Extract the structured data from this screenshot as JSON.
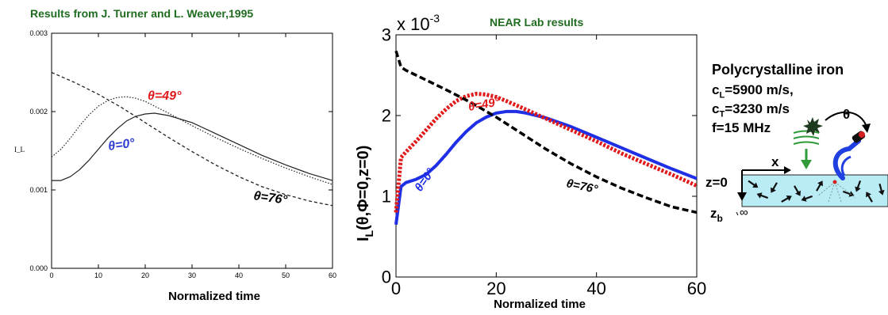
{
  "chart_data": [
    {
      "type": "line",
      "title": "Results from J. Turner and L. Weaver,1995",
      "xlabel": "Normalized time",
      "ylabel": "I_L",
      "xlim": [
        0,
        60
      ],
      "ylim": [
        0,
        0.003
      ],
      "xticks": [
        "0",
        "10",
        "20",
        "30",
        "40",
        "50",
        "60"
      ],
      "yticks": [
        "0.000",
        "0.001",
        "0.002",
        "0.003"
      ],
      "grid": false,
      "colors": {
        "title": "#1f6b1f",
        "series_line": "#222222"
      },
      "series": [
        {
          "name": "θ=0°",
          "style": "solid",
          "label_color": "#2f3bd1",
          "x": [
            0,
            2,
            4,
            6,
            8,
            10,
            12,
            14,
            16,
            18,
            20,
            22,
            25,
            30,
            35,
            40,
            45,
            50,
            55,
            60
          ],
          "y": [
            0.00112,
            0.00112,
            0.00117,
            0.00126,
            0.00138,
            0.00152,
            0.00166,
            0.00178,
            0.00188,
            0.00194,
            0.00197,
            0.00198,
            0.00195,
            0.00186,
            0.00172,
            0.00158,
            0.00144,
            0.00132,
            0.00121,
            0.00112
          ]
        },
        {
          "name": "θ=49°",
          "style": "dotted",
          "label_color": "#e0191a",
          "x": [
            0,
            2,
            4,
            6,
            8,
            10,
            12,
            14,
            16,
            18,
            20,
            22,
            25,
            30,
            35,
            40,
            45,
            50,
            55,
            60
          ],
          "y": [
            0.00142,
            0.00152,
            0.00166,
            0.00182,
            0.00196,
            0.00207,
            0.00214,
            0.00218,
            0.00219,
            0.00217,
            0.00213,
            0.00207,
            0.00198,
            0.00182,
            0.00167,
            0.00153,
            0.0014,
            0.00128,
            0.00117,
            0.00107
          ]
        },
        {
          "name": "θ=76°",
          "style": "dashed",
          "label_color": "#000000",
          "x": [
            0,
            5,
            10,
            15,
            20,
            25,
            30,
            35,
            40,
            45,
            50,
            55,
            60
          ],
          "y": [
            0.0025,
            0.00237,
            0.00222,
            0.00205,
            0.00186,
            0.00167,
            0.00149,
            0.00132,
            0.00117,
            0.00104,
            0.00094,
            0.00086,
            0.0008
          ]
        }
      ]
    },
    {
      "type": "line",
      "title": "NEAR Lab results",
      "xlabel": "Normalized time",
      "ylabel": "I_L(θ,Φ=0,z=0)",
      "ylabel_main": "I",
      "ylabel_sub": "L",
      "ylabel_rest": "(θ,Φ=0,z=0)",
      "y_multiplier": "x 10",
      "y_multiplier_exp": "-3",
      "xlim": [
        0,
        60
      ],
      "ylim": [
        0,
        3
      ],
      "xticks": [
        "0",
        "20",
        "40",
        "60"
      ],
      "yticks": [
        "0",
        "1",
        "2",
        "3"
      ],
      "grid": false,
      "colors": {
        "title": "#1f6b1f"
      },
      "series": [
        {
          "name": "θ=0°",
          "color": "#1f2fe6",
          "style": "solid",
          "x": [
            0,
            1,
            2,
            4,
            6,
            8,
            10,
            12,
            14,
            16,
            18,
            20,
            22,
            24,
            26,
            30,
            35,
            40,
            45,
            50,
            55,
            60
          ],
          "y": [
            0.65,
            1.12,
            1.17,
            1.21,
            1.27,
            1.38,
            1.52,
            1.67,
            1.8,
            1.91,
            1.98,
            2.03,
            2.05,
            2.05,
            2.03,
            1.97,
            1.86,
            1.73,
            1.6,
            1.47,
            1.34,
            1.22
          ]
        },
        {
          "name": "θ=49°",
          "color": "#e0191a",
          "style": "dotted",
          "x": [
            0,
            1,
            2,
            4,
            6,
            8,
            10,
            12,
            14,
            16,
            18,
            20,
            22,
            25,
            30,
            35,
            40,
            45,
            50,
            55,
            60
          ],
          "y": [
            0.8,
            1.48,
            1.55,
            1.68,
            1.82,
            1.96,
            2.08,
            2.18,
            2.24,
            2.27,
            2.26,
            2.23,
            2.18,
            2.1,
            1.96,
            1.82,
            1.68,
            1.53,
            1.4,
            1.27,
            1.13
          ]
        },
        {
          "name": "θ=76°",
          "color": "#000000",
          "style": "dashed",
          "x": [
            0,
            0.5,
            1,
            2,
            4,
            6,
            10,
            15,
            20,
            25,
            30,
            35,
            40,
            45,
            50,
            55,
            60
          ],
          "y": [
            2.8,
            2.7,
            2.6,
            2.56,
            2.5,
            2.44,
            2.32,
            2.16,
            1.98,
            1.78,
            1.58,
            1.4,
            1.24,
            1.1,
            0.98,
            0.87,
            0.8
          ]
        }
      ]
    }
  ],
  "labels": {
    "left_theta0": "θ=0°",
    "left_theta49": "θ=49°",
    "left_theta76": "θ=76°",
    "right_theta0": "θ=0°",
    "right_theta49": "θ=49°",
    "right_theta76": "θ=76°"
  },
  "info": {
    "material": "Polycrystalline iron",
    "cL_main": "c",
    "cL_sub": "L",
    "cL_rest": "=5900 m/s,",
    "cT_main": "c",
    "cT_sub": "T",
    "cT_rest": "=3230 m/s",
    "freq": "f=15 MHz"
  },
  "schematic": {
    "theta": "θ",
    "x_label": "x",
    "z0_label": "z=0",
    "zb_main": "z",
    "zb_sub": "b",
    "infinity": "∞",
    "colors": {
      "medium": "#b9ecf4",
      "probe": "#1f3fe0",
      "wave": "#2e9a3a",
      "tip": "#d42020"
    }
  }
}
